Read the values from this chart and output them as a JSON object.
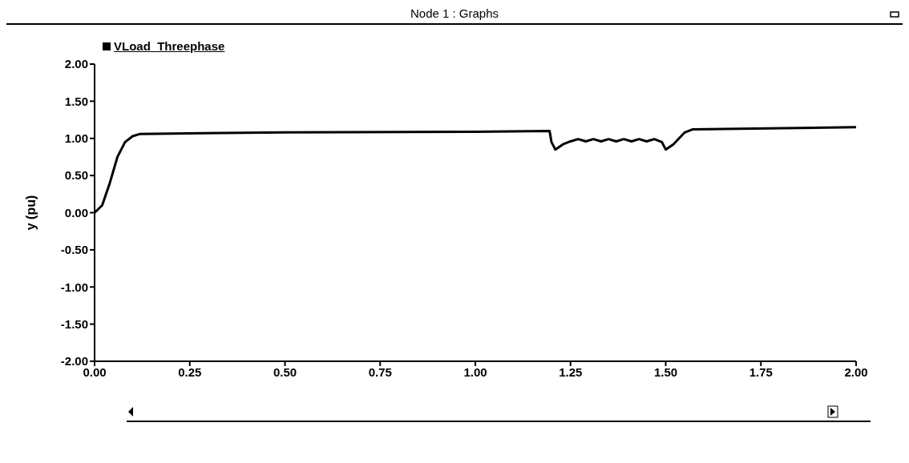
{
  "chart_data": {
    "type": "line",
    "title": "Node 1 : Graphs",
    "ylabel": "y (pu)",
    "x": [
      0,
      0.02,
      0.04,
      0.06,
      0.08,
      0.1,
      0.12,
      0.5,
      1.0,
      1.195,
      1.2,
      1.21,
      1.23,
      1.25,
      1.27,
      1.29,
      1.31,
      1.33,
      1.35,
      1.37,
      1.39,
      1.41,
      1.43,
      1.45,
      1.47,
      1.49,
      1.5,
      1.52,
      1.55,
      1.57,
      2.0
    ],
    "series": [
      {
        "name": "VLoad_Threephase",
        "color": "#000000",
        "values": [
          0,
          0.1,
          0.4,
          0.75,
          0.95,
          1.03,
          1.06,
          1.08,
          1.09,
          1.1,
          0.95,
          0.85,
          0.92,
          0.96,
          0.99,
          0.96,
          0.99,
          0.96,
          0.99,
          0.96,
          0.99,
          0.96,
          0.99,
          0.96,
          0.99,
          0.95,
          0.85,
          0.92,
          1.08,
          1.12,
          1.15
        ]
      }
    ],
    "xlim": [
      0,
      2
    ],
    "xticks": [
      {
        "value": 0,
        "label": "0.00"
      },
      {
        "value": 0.25,
        "label": "0.25"
      },
      {
        "value": 0.5,
        "label": "0.50"
      },
      {
        "value": 0.75,
        "label": "0.75"
      },
      {
        "value": 1,
        "label": "1.00"
      },
      {
        "value": 1.25,
        "label": "1.25"
      },
      {
        "value": 1.5,
        "label": "1.50"
      },
      {
        "value": 1.75,
        "label": "1.75"
      },
      {
        "value": 2,
        "label": "2.00"
      }
    ],
    "ylim": [
      -2,
      2
    ],
    "yticks": [
      {
        "value": -2,
        "label": "-2.00"
      },
      {
        "value": -1.5,
        "label": "-1.50"
      },
      {
        "value": -1,
        "label": "-1.00"
      },
      {
        "value": -0.5,
        "label": "-0.50"
      },
      {
        "value": 0,
        "label": "0.00"
      },
      {
        "value": 0.5,
        "label": "0.50"
      },
      {
        "value": 1,
        "label": "1.00"
      },
      {
        "value": 1.5,
        "label": "1.50"
      },
      {
        "value": 2,
        "label": "2.00"
      }
    ],
    "grid": false,
    "legend": "top left",
    "marker": "none",
    "line_style": "solid"
  }
}
